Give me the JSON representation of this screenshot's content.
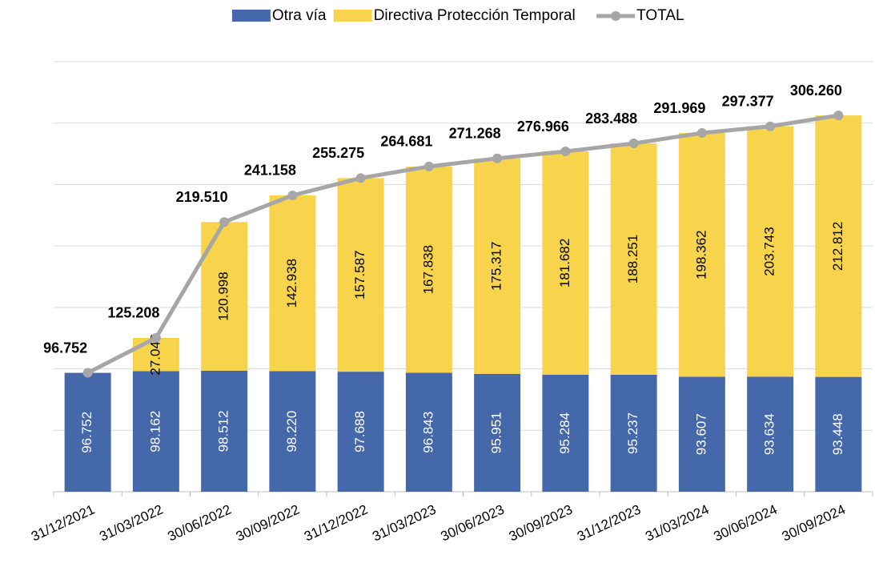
{
  "chart_data": {
    "type": "stacked_bar_line",
    "categories": [
      "31/12/2021",
      "31/03/2022",
      "30/06/2022",
      "30/09/2022",
      "31/12/2022",
      "31/03/2023",
      "30/06/2023",
      "30/09/2023",
      "31/12/2023",
      "31/03/2024",
      "30/06/2024",
      "30/09/2024"
    ],
    "series": [
      {
        "name": "Otra vía",
        "color": "#4468aa",
        "kind": "bar",
        "values": [
          96752,
          98162,
          98512,
          98220,
          97688,
          96843,
          95951,
          95284,
          95237,
          93607,
          93634,
          93448
        ],
        "value_labels": [
          "96.752",
          "98.162",
          "98.512",
          "98.220",
          "97.688",
          "96.843",
          "95.951",
          "95.284",
          "95.237",
          "93.607",
          "93.634",
          "93.448"
        ]
      },
      {
        "name": "Directiva Protección Temporal",
        "color": "#f7d44c",
        "kind": "bar",
        "values": [
          null,
          27046,
          120998,
          142938,
          157587,
          167838,
          175317,
          181682,
          188251,
          198362,
          203743,
          212812
        ],
        "value_labels": [
          null,
          "27.046",
          "120.998",
          "142.938",
          "157.587",
          "167.838",
          "175.317",
          "181.682",
          "188.251",
          "198.362",
          "203.743",
          "212.812"
        ]
      },
      {
        "name": "TOTAL",
        "color": "#a6a6a6",
        "kind": "line",
        "values": [
          96752,
          125208,
          219510,
          241158,
          255275,
          264681,
          271268,
          276966,
          283488,
          291969,
          297377,
          306260
        ],
        "value_labels": [
          "96.752",
          "125.208",
          "219.510",
          "241.158",
          "255.275",
          "264.681",
          "271.268",
          "276.966",
          "283.488",
          "291.969",
          "297.377",
          "306.260"
        ]
      }
    ],
    "ylim": [
      0,
      350000
    ],
    "yticks": [
      0,
      50000,
      100000,
      150000,
      200000,
      250000,
      300000,
      350000
    ],
    "grid": true,
    "legend": "top"
  }
}
